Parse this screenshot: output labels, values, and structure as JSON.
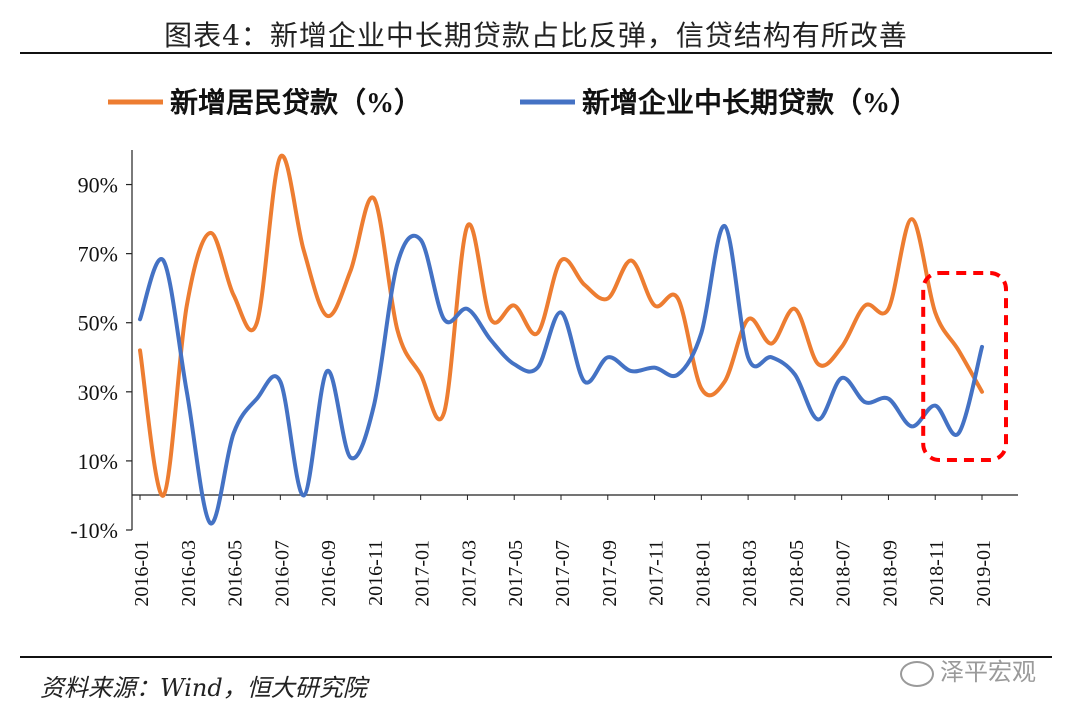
{
  "header": {
    "title": "图表4：新增企业中长期贷款占比反弹，信贷结构有所改善"
  },
  "footer": {
    "source": "资料来源：Wind，恒大研究院",
    "watermark": "泽平宏观"
  },
  "chart_data": {
    "type": "line",
    "title": "图表4：新增企业中长期贷款占比反弹，信贷结构有所改善",
    "xlabel": "",
    "ylabel": "",
    "ylim": [
      -10,
      100
    ],
    "yticks": [
      "-10%",
      "10%",
      "30%",
      "50%",
      "70%",
      "90%"
    ],
    "ytick_values": [
      -10,
      10,
      30,
      50,
      70,
      90
    ],
    "x": [
      "2016-01",
      "2016-02",
      "2016-03",
      "2016-04",
      "2016-05",
      "2016-06",
      "2016-07",
      "2016-08",
      "2016-09",
      "2016-10",
      "2016-11",
      "2016-12",
      "2017-01",
      "2017-02",
      "2017-03",
      "2017-04",
      "2017-05",
      "2017-06",
      "2017-07",
      "2017-08",
      "2017-09",
      "2017-10",
      "2017-11",
      "2017-12",
      "2018-01",
      "2018-02",
      "2018-03",
      "2018-04",
      "2018-05",
      "2018-06",
      "2018-07",
      "2018-08",
      "2018-09",
      "2018-10",
      "2018-11",
      "2018-12",
      "2019-01"
    ],
    "xtick_labels": [
      "2016-01",
      "2016-03",
      "2016-05",
      "2016-07",
      "2016-09",
      "2016-11",
      "2017-01",
      "2017-03",
      "2017-05",
      "2017-07",
      "2017-09",
      "2017-11",
      "2018-01",
      "2018-03",
      "2018-05",
      "2018-07",
      "2018-09",
      "2018-11",
      "2019-01"
    ],
    "legend_position": "top",
    "series": [
      {
        "name": "新增居民贷款（%）",
        "color": "#ED7D31",
        "values": [
          42,
          0,
          55,
          76,
          58,
          50,
          98,
          71,
          52,
          65,
          86,
          48,
          35,
          24,
          78,
          51,
          55,
          47,
          68,
          61,
          57,
          68,
          55,
          57,
          31,
          33,
          51,
          44,
          54,
          38,
          43,
          55,
          54,
          80,
          53,
          42,
          30
        ]
      },
      {
        "name": "新增企业中长期贷款（%）",
        "color": "#4472C4",
        "values": [
          51,
          68,
          30,
          -8,
          18,
          28,
          33,
          0,
          36,
          11,
          26,
          67,
          74,
          51,
          54,
          45,
          38,
          37,
          53,
          33,
          40,
          36,
          37,
          35,
          47,
          78,
          40,
          40,
          35,
          22,
          34,
          27,
          28,
          20,
          26,
          18,
          43
        ]
      }
    ],
    "annotations": [
      {
        "type": "dashed-box",
        "color": "#FF0000",
        "from": "2018-11",
        "to": "2019-01"
      }
    ]
  }
}
